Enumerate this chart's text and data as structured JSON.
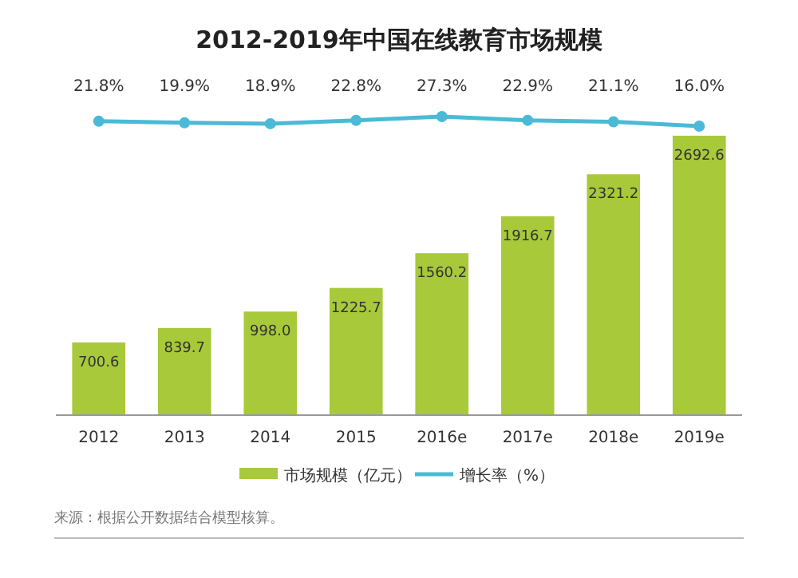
{
  "chart_data": [
    {
      "type": "bar",
      "categories": [
        "2012",
        "2013",
        "2014",
        "2015",
        "2016e",
        "2017e",
        "2018e",
        "2019e"
      ],
      "series": [
        {
          "name": "市场规模（亿元）",
          "color": "#a8c93a",
          "values": [
            700.6,
            839.7,
            998.0,
            1225.7,
            1560.2,
            1916.7,
            2321.2,
            2692.6
          ],
          "value_labels": [
            "700.6",
            "839.7",
            "998.0",
            "1225.7",
            "1560.2",
            "1916.7",
            "2321.2",
            "2692.6"
          ]
        }
      ],
      "legend": "bottom",
      "annotations": [
        "来源：根据公开数据结合模型核算。"
      ]
    },
    {
      "type": "line",
      "title": "2012-2019年中国在线教育市场规模",
      "categories": [
        null,
        null,
        null,
        null,
        null,
        null,
        null,
        null
      ],
      "series": [
        {
          "name": "增长率（%）",
          "color": "#4bbad6",
          "values": [
            21.8,
            19.9,
            18.9,
            22.8,
            27.3,
            22.9,
            21.1,
            16.0
          ],
          "value_labels": [
            "21.8%",
            "19.9%",
            "18.9%",
            "22.8%",
            "27.3%",
            "22.9%",
            "21.1%",
            "16.0%"
          ]
        }
      ],
      "legend": "bottom",
      "marker": "circle"
    }
  ]
}
